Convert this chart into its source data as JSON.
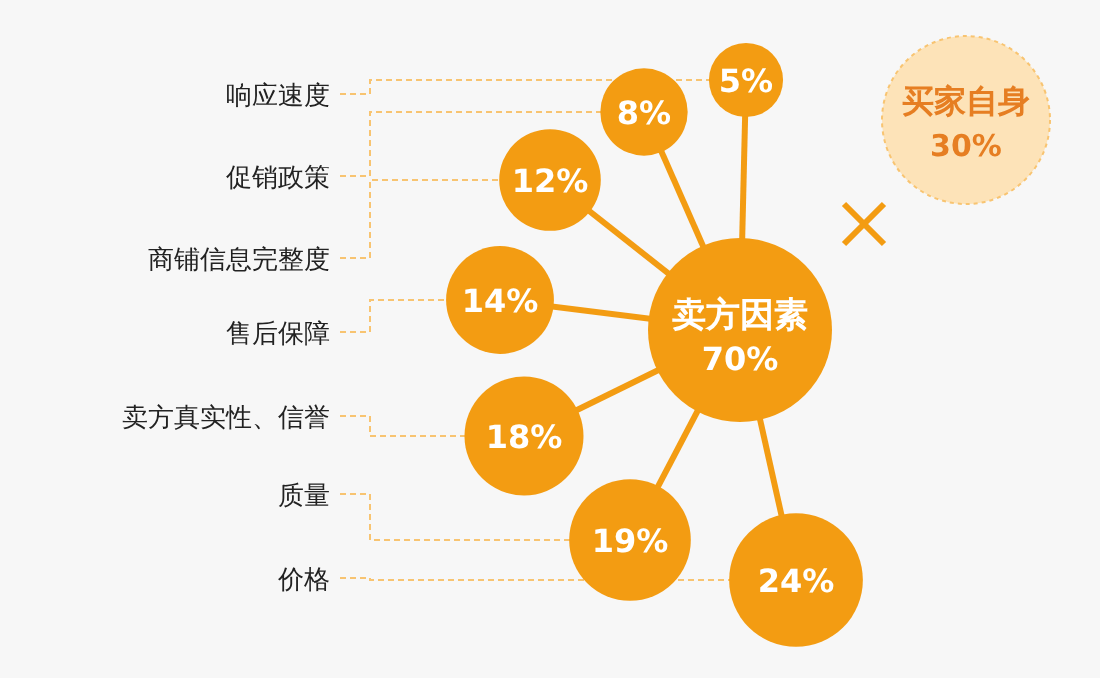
{
  "chart_data": {
    "type": "other",
    "categories": [
      "响应速度",
      "促销政策",
      "商铺信息完整度",
      "售后保障",
      "卖方真实性、信誉",
      "质量",
      "价格"
    ],
    "series": [
      {
        "color": "#f39c12",
        "values": [
          5,
          8,
          12,
          14,
          18,
          19,
          24
        ],
        "value_labels": [
          "5%",
          "8%",
          "12%",
          "14%",
          "18%",
          "19%",
          "24%"
        ]
      }
    ],
    "annotations": [
      "卖方因素",
      "70%",
      "买家自身",
      "30%"
    ]
  }
}
